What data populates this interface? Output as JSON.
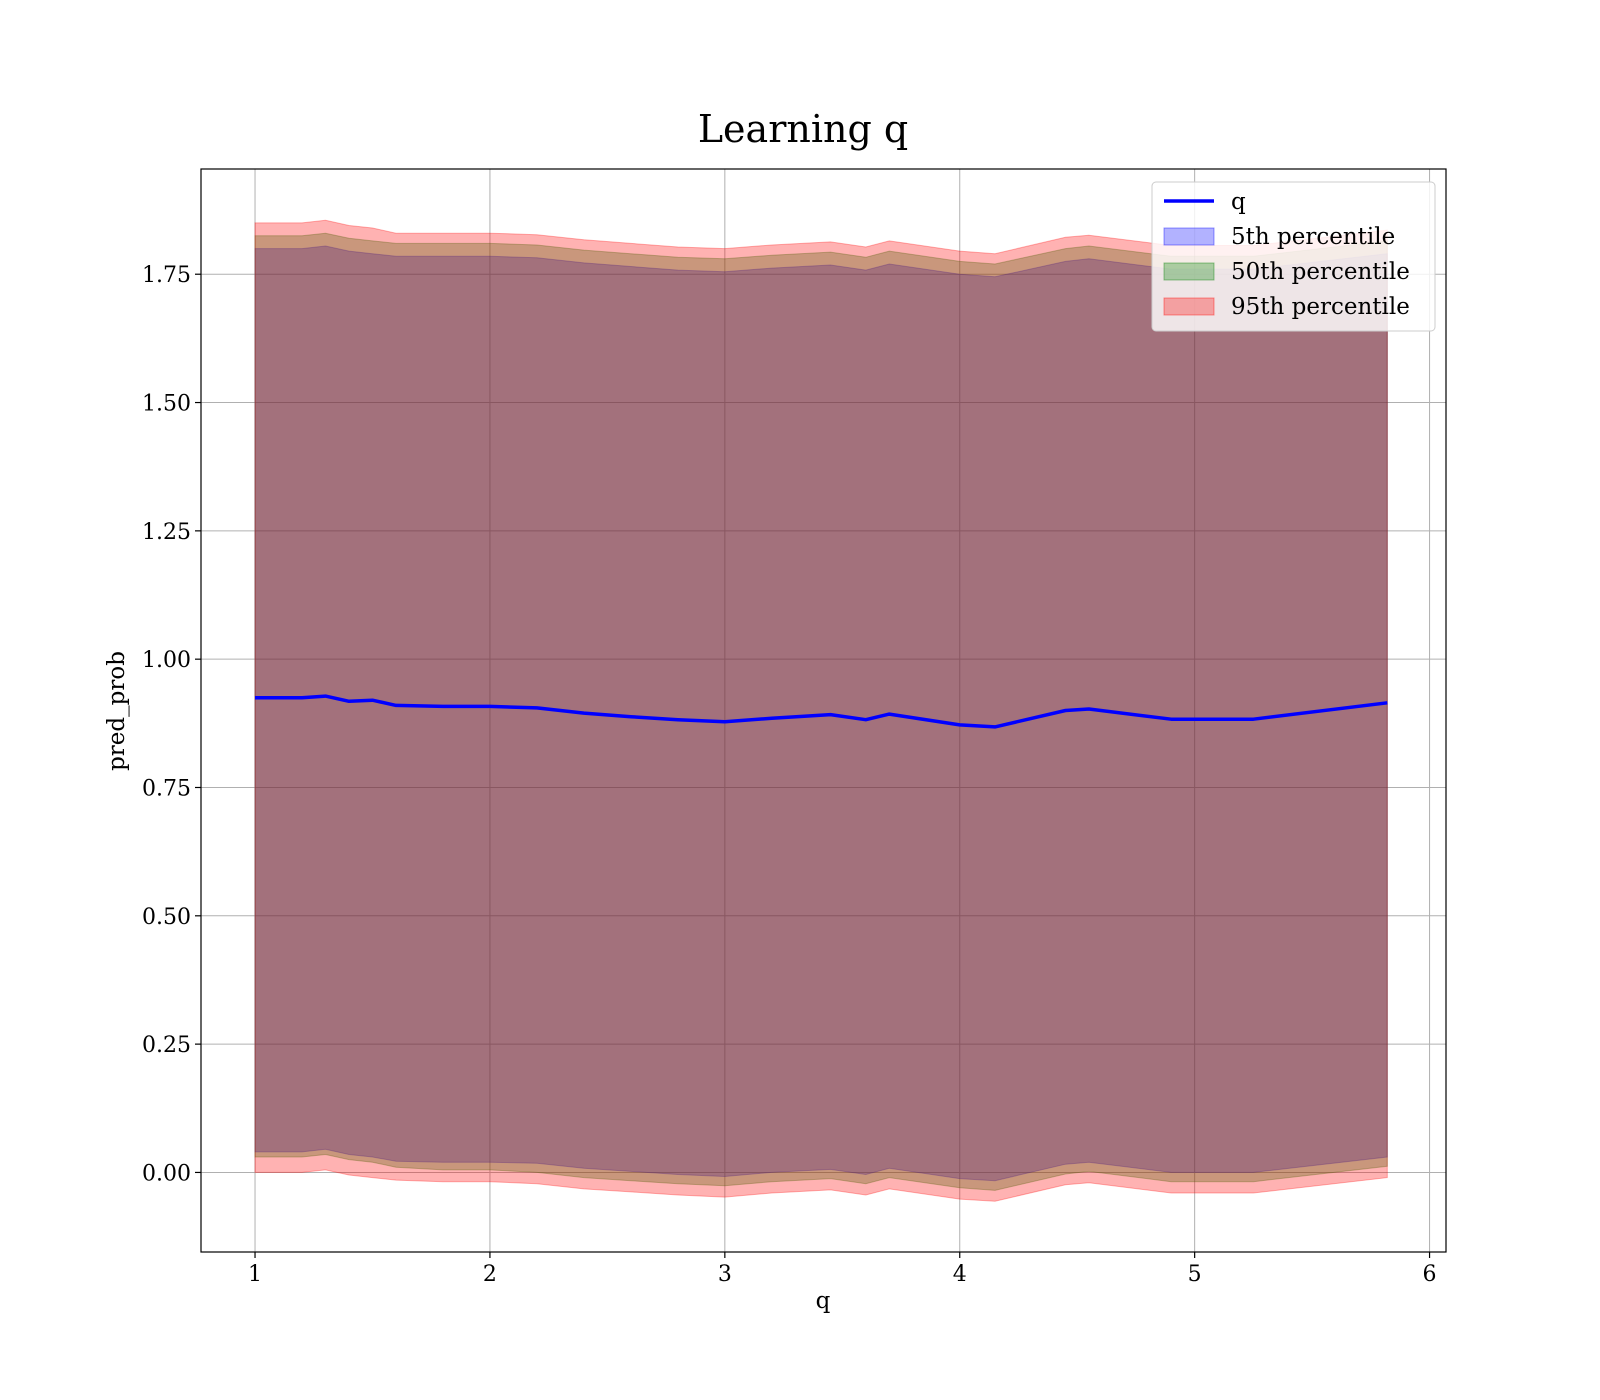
{
  "chart_data": {
    "type": "area",
    "title": "Learning q",
    "xlabel": "q",
    "ylabel": "pred_prob",
    "xlim": [
      0.77,
      6.07
    ],
    "ylim": [
      -0.155,
      1.955
    ],
    "xticks": [
      1,
      2,
      3,
      4,
      5,
      6
    ],
    "xtick_labels": [
      "1",
      "2",
      "3",
      "4",
      "5",
      "6"
    ],
    "yticks": [
      0.0,
      0.25,
      0.5,
      0.75,
      1.0,
      1.25,
      1.5,
      1.75
    ],
    "ytick_labels": [
      "0.00",
      "0.25",
      "0.50",
      "0.75",
      "1.00",
      "1.25",
      "1.50",
      "1.75"
    ],
    "grid": true,
    "legend_position": "top-right",
    "x": [
      1.0,
      1.1,
      1.2,
      1.3,
      1.4,
      1.5,
      1.6,
      1.8,
      2.0,
      2.2,
      2.4,
      2.6,
      2.8,
      3.0,
      3.2,
      3.45,
      3.6,
      3.7,
      4.0,
      4.15,
      4.45,
      4.55,
      4.9,
      5.25,
      5.82
    ],
    "line": {
      "name": "q",
      "color": "#0000ff",
      "values": [
        0.925,
        0.925,
        0.925,
        0.928,
        0.918,
        0.92,
        0.91,
        0.908,
        0.908,
        0.905,
        0.895,
        0.888,
        0.882,
        0.878,
        0.885,
        0.892,
        0.882,
        0.893,
        0.872,
        0.868,
        0.9,
        0.903,
        0.883,
        0.883,
        0.915
      ]
    },
    "bands": [
      {
        "name": "5th percentile",
        "color": "#0000ff",
        "opacity": 0.3,
        "upper": [
          1.8,
          1.8,
          1.8,
          1.805,
          1.795,
          1.79,
          1.785,
          1.785,
          1.785,
          1.782,
          1.772,
          1.765,
          1.758,
          1.755,
          1.762,
          1.768,
          1.758,
          1.77,
          1.75,
          1.745,
          1.775,
          1.78,
          1.76,
          1.76,
          1.79
        ],
        "lower": [
          0.04,
          0.04,
          0.04,
          0.045,
          0.035,
          0.03,
          0.022,
          0.02,
          0.02,
          0.018,
          0.008,
          0.002,
          -0.004,
          -0.008,
          -0.0,
          0.006,
          -0.004,
          0.008,
          -0.012,
          -0.016,
          0.016,
          0.02,
          0.0,
          0.0,
          0.03
        ]
      },
      {
        "name": "50th percentile",
        "color": "#008000",
        "opacity": 0.3,
        "upper": [
          1.825,
          1.825,
          1.825,
          1.83,
          1.82,
          1.815,
          1.81,
          1.81,
          1.81,
          1.807,
          1.797,
          1.79,
          1.783,
          1.78,
          1.787,
          1.793,
          1.783,
          1.795,
          1.775,
          1.77,
          1.8,
          1.805,
          1.785,
          1.785,
          1.815
        ],
        "lower": [
          0.03,
          0.03,
          0.03,
          0.035,
          0.025,
          0.02,
          0.01,
          0.005,
          0.005,
          0.0,
          -0.01,
          -0.016,
          -0.022,
          -0.026,
          -0.018,
          -0.012,
          -0.022,
          -0.01,
          -0.03,
          -0.035,
          -0.003,
          0.002,
          -0.018,
          -0.018,
          0.012
        ]
      },
      {
        "name": "95th percentile",
        "color": "#ff0000",
        "opacity": 0.3,
        "upper": [
          1.85,
          1.85,
          1.85,
          1.855,
          1.845,
          1.84,
          1.83,
          1.83,
          1.83,
          1.827,
          1.817,
          1.81,
          1.803,
          1.8,
          1.807,
          1.813,
          1.803,
          1.815,
          1.795,
          1.79,
          1.822,
          1.826,
          1.806,
          1.806,
          1.836
        ],
        "lower": [
          0.0,
          0.0,
          0.0,
          0.005,
          -0.005,
          -0.01,
          -0.015,
          -0.018,
          -0.018,
          -0.022,
          -0.032,
          -0.038,
          -0.044,
          -0.048,
          -0.04,
          -0.034,
          -0.044,
          -0.032,
          -0.052,
          -0.056,
          -0.024,
          -0.02,
          -0.04,
          -0.04,
          -0.01
        ]
      }
    ]
  }
}
